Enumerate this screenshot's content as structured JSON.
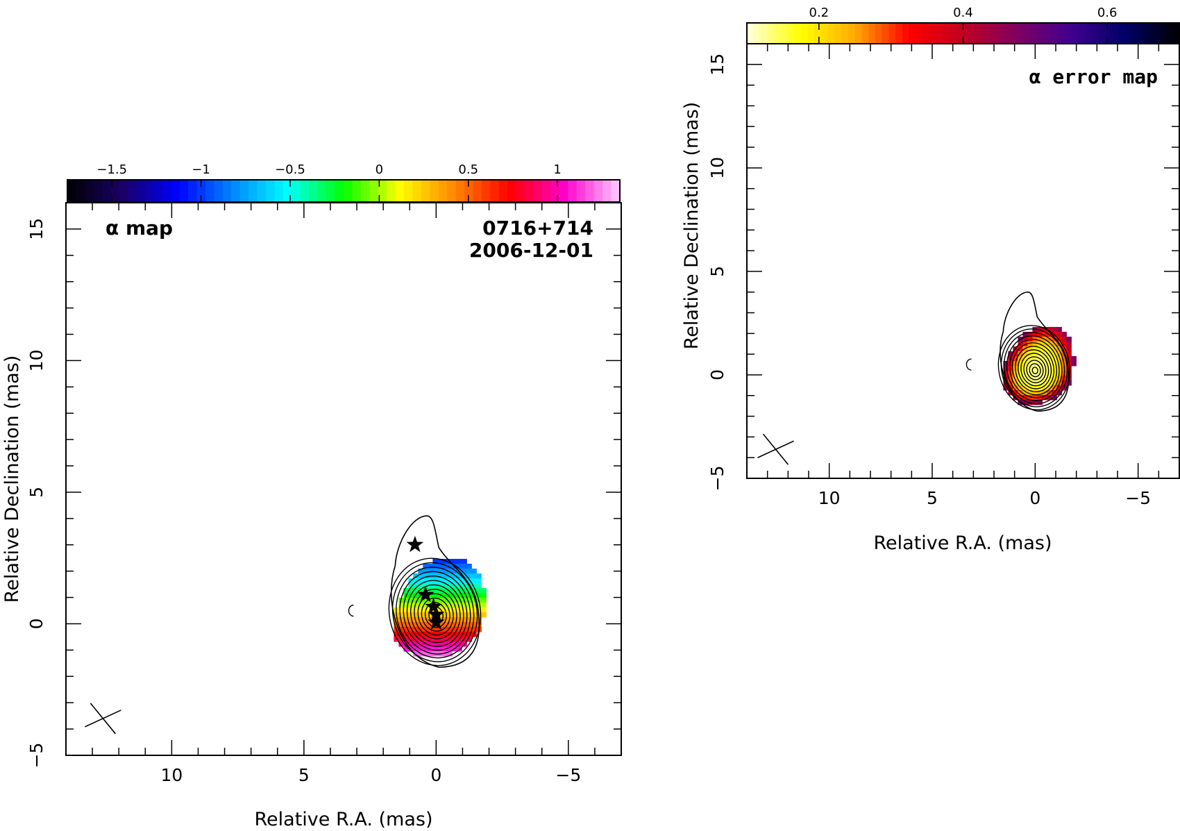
{
  "chart_data": [
    {
      "type": "heatmap",
      "title": "α map",
      "annotations": [
        "0716+714",
        "2006-12-01"
      ],
      "xlabel": "Relative R.A. (mas)",
      "ylabel": "Relative Declination (mas)",
      "xlim": [
        14,
        -7
      ],
      "ylim": [
        -5,
        16
      ],
      "x_ticks": [
        10,
        5,
        0,
        -5
      ],
      "x_tick_labels": [
        "10",
        "5",
        "0",
        "−5"
      ],
      "y_ticks": [
        -5,
        0,
        5,
        10,
        15
      ],
      "y_tick_labels": [
        "−5",
        "0",
        "5",
        "10",
        "15"
      ],
      "colorbar": {
        "range": [
          -1.75,
          1.35
        ],
        "ticks": [
          -1.5,
          -1,
          -0.5,
          0,
          0.5,
          1
        ],
        "tick_labels": [
          "−1.5",
          "−1",
          "−0.5",
          "0",
          "0.5",
          "1"
        ],
        "colormap": [
          "#000000",
          "#1a0066",
          "#0000ff",
          "#0088ff",
          "#00ffff",
          "#00ff00",
          "#ffff00",
          "#ff8800",
          "#ff0000",
          "#ff00cc",
          "#ffccff"
        ],
        "placement": "top"
      },
      "peak_position": [
        0,
        0.3
      ],
      "component_markers": [
        {
          "x": 0.8,
          "y": 3.0
        },
        {
          "x": 0.4,
          "y": 1.1
        },
        {
          "x": 0.1,
          "y": 0.65
        },
        {
          "x": 0.0,
          "y": 0.35
        },
        {
          "x": 0.0,
          "y": 0.05
        }
      ],
      "beam_position": [
        12.6,
        -3.6
      ],
      "isolated_contour": [
        3.2,
        0.5
      ]
    },
    {
      "type": "heatmap",
      "title": "α error map",
      "xlabel": "Relative R.A. (mas)",
      "ylabel": "Relative Declination (mas)",
      "xlim": [
        14,
        -7
      ],
      "ylim": [
        -5,
        16
      ],
      "x_ticks": [
        10,
        5,
        0,
        -5
      ],
      "x_tick_labels": [
        "10",
        "5",
        "0",
        "−5"
      ],
      "y_ticks": [
        -5,
        0,
        5,
        10,
        15
      ],
      "y_tick_labels": [
        "−5",
        "0",
        "5",
        "10",
        "15"
      ],
      "colorbar": {
        "range": [
          0.1,
          0.7
        ],
        "ticks": [
          0.2,
          0.4,
          0.6
        ],
        "tick_labels": [
          "0.2",
          "0.4",
          "0.6"
        ],
        "colormap": [
          "#ffffe0",
          "#ffff00",
          "#ffaa00",
          "#ff0000",
          "#c00020",
          "#800060",
          "#400090",
          "#000066",
          "#000000"
        ],
        "placement": "top"
      },
      "peak_position": [
        0,
        0.2
      ],
      "beam_position": [
        12.6,
        -3.6
      ],
      "isolated_contour": [
        3.2,
        0.5
      ]
    }
  ]
}
